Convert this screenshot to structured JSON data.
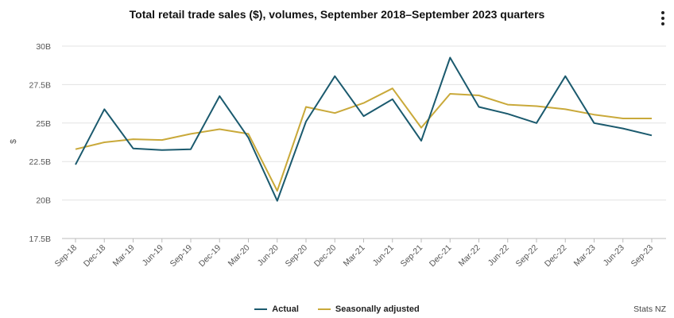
{
  "menu": {
    "icon": "kebab-menu-icon"
  },
  "credit": "Stats NZ",
  "chart_data": {
    "type": "line",
    "title": "Total retail trade sales ($), volumes, September 2018–September 2023 quarters",
    "xlabel": "",
    "ylabel": "$",
    "ylim": [
      17.5,
      30
    ],
    "yticks": [
      17.5,
      20,
      22.5,
      25,
      27.5,
      30
    ],
    "ytick_labels": [
      "17.5B",
      "20B",
      "22.5B",
      "25B",
      "27.5B",
      "30B"
    ],
    "categories": [
      "Sep-18",
      "Dec-18",
      "Mar-19",
      "Jun-19",
      "Sep-19",
      "Dec-19",
      "Mar-20",
      "Jun-20",
      "Sep-20",
      "Dec-20",
      "Mar-21",
      "Jun-21",
      "Sep-21",
      "Dec-21",
      "Mar-22",
      "Jun-22",
      "Sep-22",
      "Dec-22",
      "Mar-23",
      "Jun-23",
      "Sep-23"
    ],
    "legend_position": "bottom",
    "series": [
      {
        "name": "Actual",
        "color": "#1b5a6e",
        "values": [
          22.3,
          25.9,
          23.35,
          23.25,
          23.3,
          26.75,
          24.05,
          19.95,
          25.1,
          28.05,
          25.45,
          26.55,
          23.85,
          29.25,
          26.05,
          25.6,
          25.0,
          28.05,
          25.0,
          24.65,
          24.2
        ]
      },
      {
        "name": "Seasonally adjusted",
        "color": "#c9a93a",
        "values": [
          23.3,
          23.75,
          23.95,
          23.9,
          24.3,
          24.6,
          24.3,
          20.6,
          26.05,
          25.65,
          26.3,
          27.25,
          24.7,
          26.9,
          26.8,
          26.2,
          26.1,
          25.9,
          25.55,
          25.3,
          25.3
        ]
      }
    ]
  }
}
